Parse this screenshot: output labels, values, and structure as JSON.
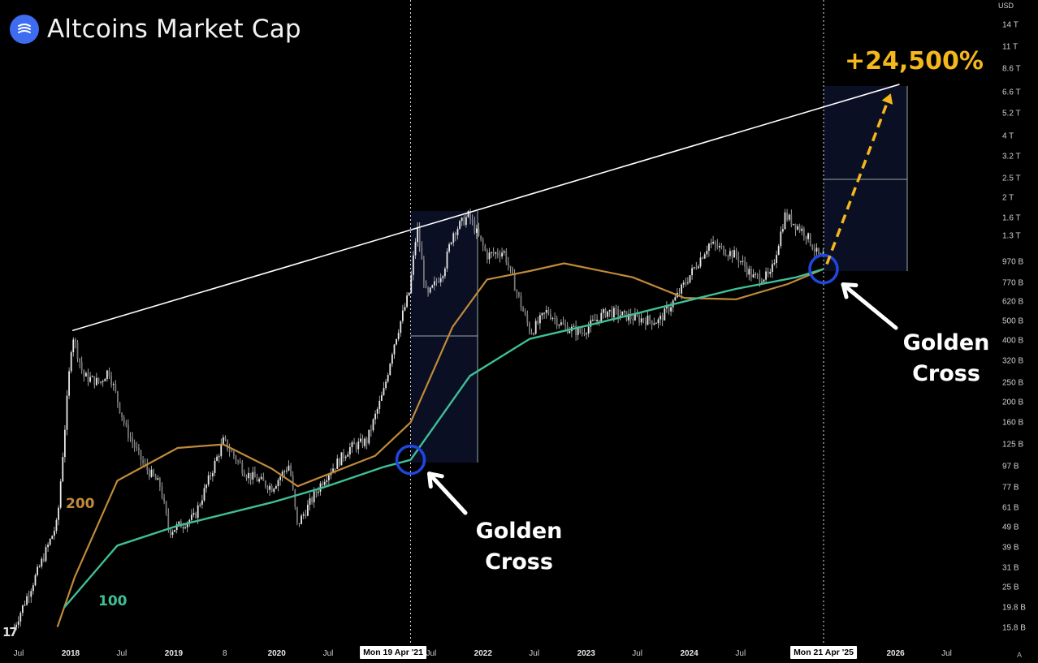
{
  "header": {
    "title": "Altcoins Market Cap",
    "logo_icon": "waves-lines-icon",
    "logo_color": "#3d6cf0"
  },
  "currency": "USD",
  "annotations": {
    "golden_cross_1": "Golden\nCross",
    "golden_cross_2": "Golden\nCross",
    "target_pct": "+24,500%",
    "ma200_label": "200",
    "ma100_label": "100",
    "crosshair_date_1": "Mon 19 Apr '21",
    "crosshair_date_2": "Mon 21 Apr '25",
    "corner_logo": "17",
    "scale_mode": "A"
  },
  "colors": {
    "background": "#000000",
    "candles": "#c8c8c8",
    "ma200": "#c08a3a",
    "ma100": "#3fbf98",
    "circle": "#1f47e0",
    "target_arrow": "#f4b81c",
    "trendline": "#ffffff",
    "projection_box": "#0a0f24"
  },
  "chart_data": {
    "type": "line",
    "scale": "log",
    "y_unit": "USD",
    "y_ticks": [
      "14 T",
      "11 T",
      "8.6 T",
      "6.6 T",
      "5.2 T",
      "4 T",
      "3.2 T",
      "2.5 T",
      "2 T",
      "1.6 T",
      "1.3 T",
      "970 B",
      "770 B",
      "620 B",
      "500 B",
      "400 B",
      "320 B",
      "250 B",
      "200 B",
      "160 B",
      "125 B",
      "97 B",
      "77 B",
      "61 B",
      "49 B",
      "39 B",
      "31 B",
      "25 B",
      "19.8 B",
      "15.8 B"
    ],
    "x_ticks": [
      "Jul",
      "2018",
      "Jul",
      "2019",
      "8",
      "2020",
      "Jul",
      "2021",
      "Jul",
      "2022",
      "Jul",
      "2023",
      "Jul",
      "2024",
      "Jul",
      "2025",
      "Jul",
      "2026",
      "Jul"
    ],
    "x_ticks_bold": [
      "2018",
      "2019",
      "2020",
      "2022",
      "2023",
      "2024",
      "2026"
    ],
    "series": [
      {
        "name": "Altcoins Market Cap",
        "points": [
          [
            "2017-06",
            16
          ],
          [
            "2017-09",
            32
          ],
          [
            "2017-11",
            52
          ],
          [
            "2018-01-07",
            440
          ],
          [
            "2018-02",
            270
          ],
          [
            "2018-04",
            250
          ],
          [
            "2018-05",
            290
          ],
          [
            "2018-07",
            150
          ],
          [
            "2018-09",
            100
          ],
          [
            "2018-11",
            78
          ],
          [
            "2018-12-15",
            47
          ],
          [
            "2019-03",
            55
          ],
          [
            "2019-06-26",
            130
          ],
          [
            "2019-09",
            90
          ],
          [
            "2019-12",
            77
          ],
          [
            "2020-02",
            100
          ],
          [
            "2020-03-13",
            50
          ],
          [
            "2020-06",
            85
          ],
          [
            "2020-09",
            120
          ],
          [
            "2020-11",
            130
          ],
          [
            "2021-01",
            230
          ],
          [
            "2021-02",
            370
          ],
          [
            "2021-04",
            700
          ],
          [
            "2021-05-12",
            1450
          ],
          [
            "2021-06",
            650
          ],
          [
            "2021-08",
            900
          ],
          [
            "2021-09",
            1350
          ],
          [
            "2021-11-10",
            1650
          ],
          [
            "2022-01",
            1050
          ],
          [
            "2022-03",
            1100
          ],
          [
            "2022-05",
            600
          ],
          [
            "2022-06-18",
            440
          ],
          [
            "2022-08",
            560
          ],
          [
            "2022-10",
            470
          ],
          [
            "2022-12",
            440
          ],
          [
            "2023-03",
            560
          ],
          [
            "2023-06",
            520
          ],
          [
            "2023-09",
            500
          ],
          [
            "2023-11",
            650
          ],
          [
            "2024-03-12",
            1200
          ],
          [
            "2024-06",
            1050
          ],
          [
            "2024-08",
            820
          ],
          [
            "2024-10",
            830
          ],
          [
            "2024-12-05",
            1650
          ],
          [
            "2025-02",
            1350
          ],
          [
            "2025-04-07",
            1020
          ],
          [
            "2025-04-21",
            1050
          ]
        ]
      },
      {
        "name": "200",
        "points": [
          [
            "2017-11",
            16
          ],
          [
            "2018-01",
            28
          ],
          [
            "2018-06",
            83
          ],
          [
            "2019-01",
            120
          ],
          [
            "2019-06-26",
            125
          ],
          [
            "2019-12",
            95
          ],
          [
            "2020-03",
            78
          ],
          [
            "2020-12",
            110
          ],
          [
            "2021-04-19",
            160
          ],
          [
            "2021-09",
            470
          ],
          [
            "2022-01",
            800
          ],
          [
            "2022-06",
            880
          ],
          [
            "2022-10",
            960
          ],
          [
            "2023-06",
            820
          ],
          [
            "2023-12",
            650
          ],
          [
            "2024-06",
            640
          ],
          [
            "2024-12",
            760
          ],
          [
            "2025-04-21",
            900
          ]
        ]
      },
      {
        "name": "100",
        "points": [
          [
            "2017-12-10",
            20
          ],
          [
            "2018-06",
            40
          ],
          [
            "2019-01",
            50
          ],
          [
            "2019-12",
            65
          ],
          [
            "2020-06",
            77
          ],
          [
            "2021-01",
            97
          ],
          [
            "2021-04-19",
            105
          ],
          [
            "2021-11",
            270
          ],
          [
            "2022-06",
            410
          ],
          [
            "2023-01",
            480
          ],
          [
            "2023-06",
            540
          ],
          [
            "2024-01",
            640
          ],
          [
            "2024-06",
            720
          ],
          [
            "2025-01",
            820
          ],
          [
            "2025-04-21",
            900
          ]
        ]
      }
    ],
    "golden_crosses": [
      [
        "2021-04-19",
        105
      ],
      [
        "2025-04-21",
        900
      ]
    ],
    "trendline": [
      [
        "2018-01-07",
        450
      ],
      [
        "2026-01",
        7200
      ]
    ],
    "target": {
      "from": [
        "2025-04-21",
        900
      ],
      "to": [
        "2025-12-15",
        6500
      ],
      "label": "+24,500%"
    },
    "ylim": [
      15,
      16000
    ],
    "grid": false
  }
}
